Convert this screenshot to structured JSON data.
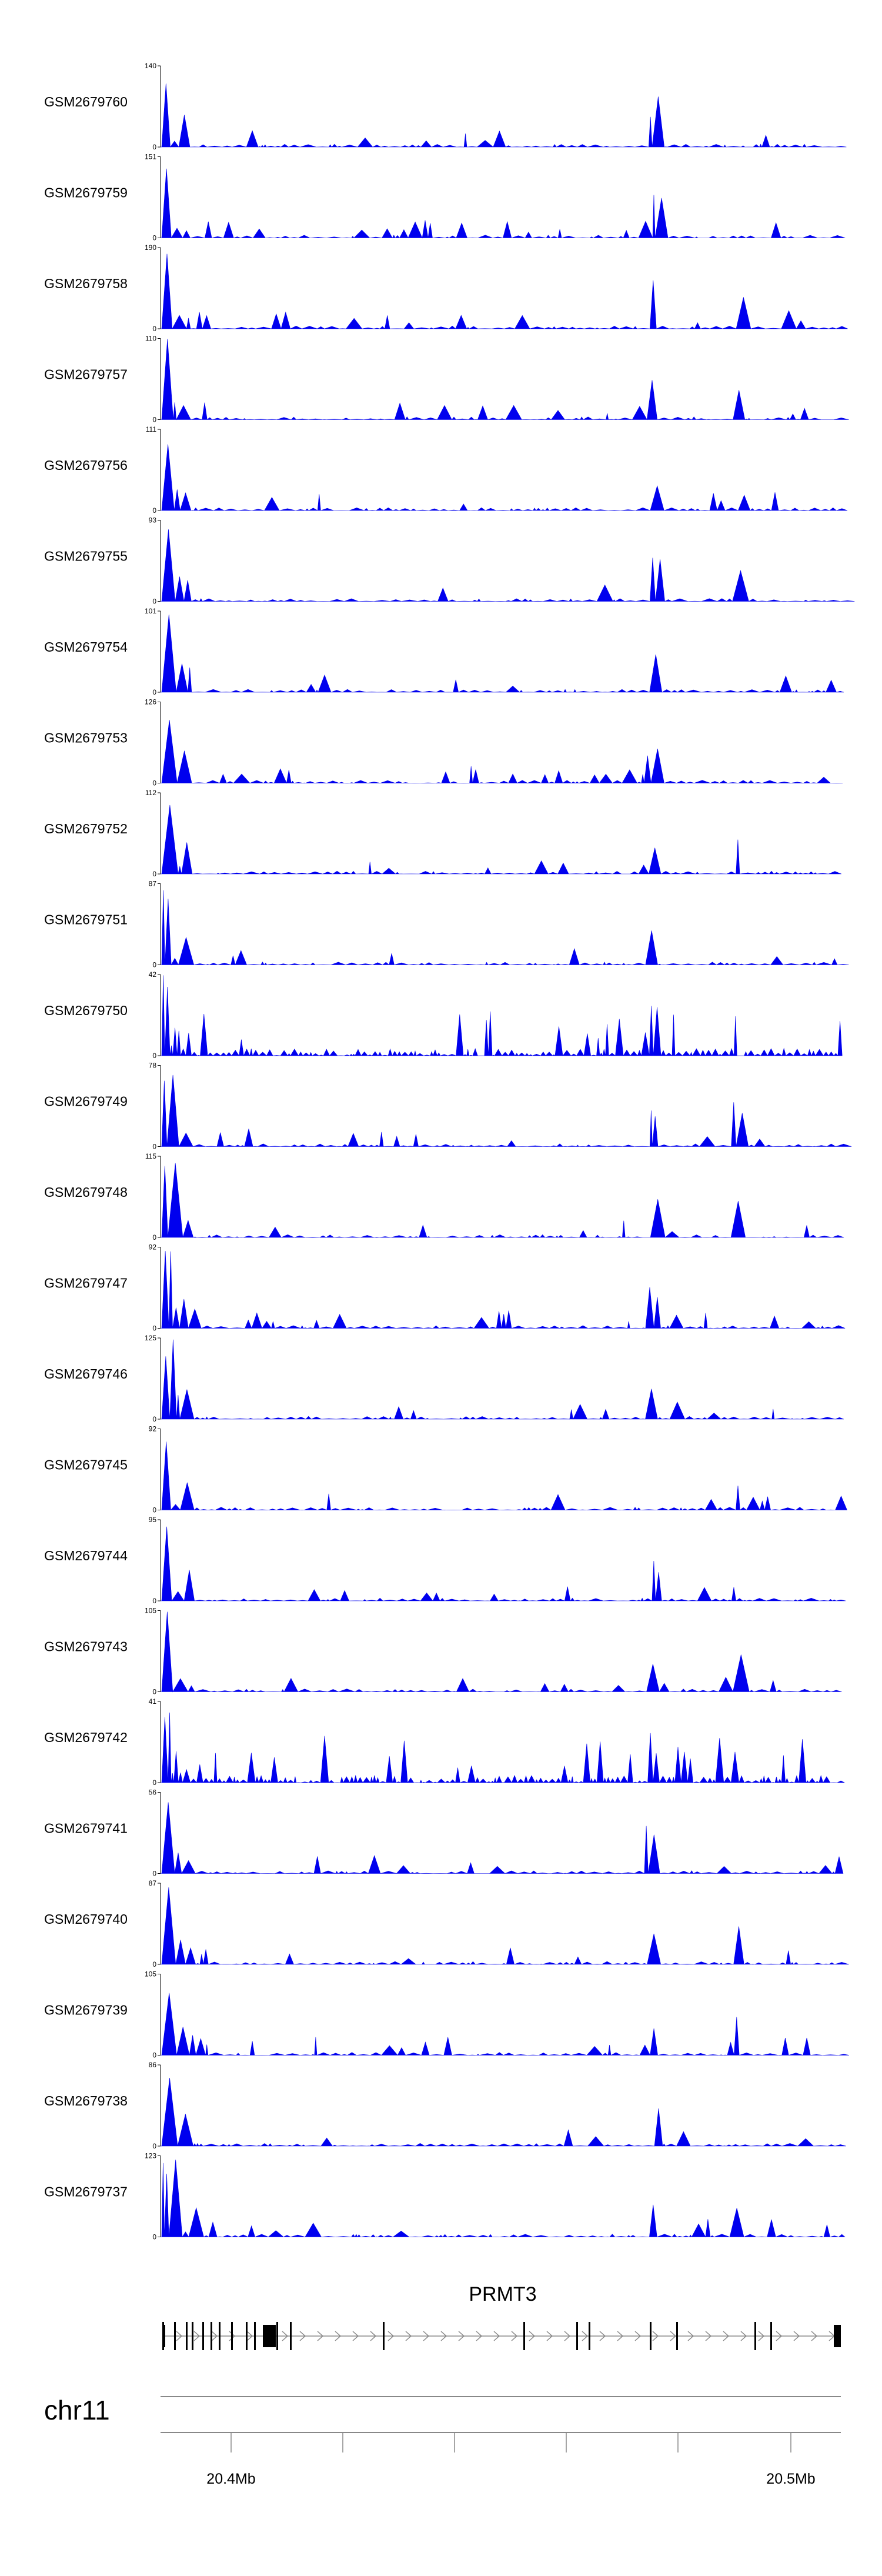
{
  "chart_data": {
    "type": "area",
    "chromosome": "chr11",
    "gene": {
      "name": "PRMT3",
      "strand": "+"
    },
    "axis": {
      "ticks": [
        "20.4Mb",
        "20.5Mb"
      ]
    },
    "tracks": [
      {
        "name": "GSM2679760",
        "ymax": "140",
        "baseline": "0"
      },
      {
        "name": "GSM2679759",
        "ymax": "151",
        "baseline": "0"
      },
      {
        "name": "GSM2679758",
        "ymax": "190",
        "baseline": "0"
      },
      {
        "name": "GSM2679757",
        "ymax": "110",
        "baseline": "0"
      },
      {
        "name": "GSM2679756",
        "ymax": "111",
        "baseline": "0"
      },
      {
        "name": "GSM2679755",
        "ymax": "93",
        "baseline": "0"
      },
      {
        "name": "GSM2679754",
        "ymax": "101",
        "baseline": "0"
      },
      {
        "name": "GSM2679753",
        "ymax": "126",
        "baseline": "0"
      },
      {
        "name": "GSM2679752",
        "ymax": "112",
        "baseline": "0"
      },
      {
        "name": "GSM2679751",
        "ymax": "87",
        "baseline": "0"
      },
      {
        "name": "GSM2679750",
        "ymax": "42",
        "baseline": "0"
      },
      {
        "name": "GSM2679749",
        "ymax": "78",
        "baseline": "0"
      },
      {
        "name": "GSM2679748",
        "ymax": "115",
        "baseline": "0"
      },
      {
        "name": "GSM2679747",
        "ymax": "92",
        "baseline": "0"
      },
      {
        "name": "GSM2679746",
        "ymax": "125",
        "baseline": "0"
      },
      {
        "name": "GSM2679745",
        "ymax": "92",
        "baseline": "0"
      },
      {
        "name": "GSM2679744",
        "ymax": "95",
        "baseline": "0"
      },
      {
        "name": "GSM2679743",
        "ymax": "105",
        "baseline": "0"
      },
      {
        "name": "GSM2679742",
        "ymax": "41",
        "baseline": "0"
      },
      {
        "name": "GSM2679741",
        "ymax": "56",
        "baseline": "0"
      },
      {
        "name": "GSM2679740",
        "ymax": "87",
        "baseline": "0"
      },
      {
        "name": "GSM2679739",
        "ymax": "105",
        "baseline": "0"
      },
      {
        "name": "GSM2679738",
        "ymax": "86",
        "baseline": "0"
      },
      {
        "name": "GSM2679737",
        "ymax": "123",
        "baseline": "0"
      }
    ]
  },
  "colors": {
    "signal": "#0000ee",
    "axis": "#000000",
    "ruler": "#888888"
  }
}
